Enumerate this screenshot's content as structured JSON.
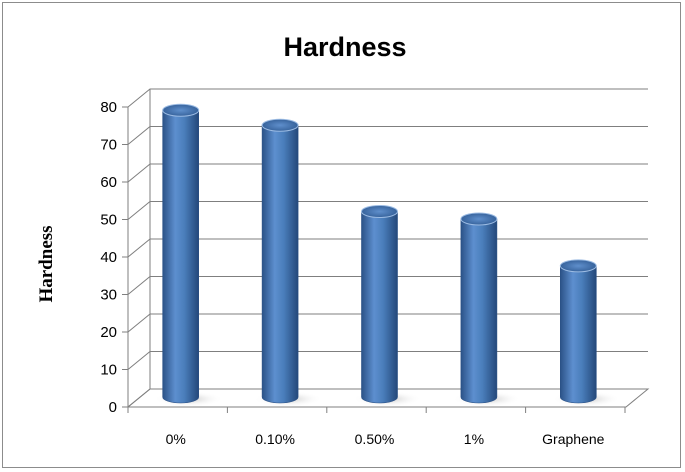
{
  "chart_data": {
    "type": "bar",
    "title": "Hardness",
    "xlabel": "",
    "ylabel": "Hardness",
    "categories": [
      "0%",
      "0.10%",
      "0.50%",
      "1%",
      "Graphene"
    ],
    "values": [
      77,
      73,
      50,
      48,
      35.5
    ],
    "ylim": [
      0,
      80
    ],
    "yticks": [
      0,
      10,
      20,
      30,
      40,
      50,
      60,
      70,
      80
    ],
    "grid": true,
    "legend": "none",
    "style": "3d-cylinder",
    "colors": {
      "bar": "#4a7ebb",
      "bar_dark": "#2f5a92",
      "bar_light": "#7aa5d8",
      "grid": "#7f7f7f"
    }
  }
}
